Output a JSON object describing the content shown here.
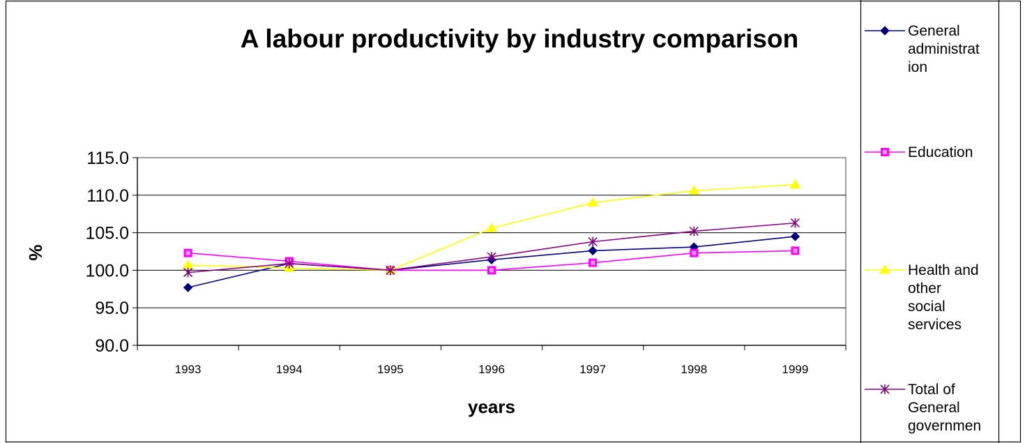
{
  "chart_data": {
    "type": "line",
    "title": "A labour productivity by industry comparison",
    "xlabel": "years",
    "ylabel": "%",
    "categories": [
      "1993",
      "1994",
      "1995",
      "1996",
      "1997",
      "1998",
      "1999"
    ],
    "ylim": [
      90,
      115
    ],
    "yticks": [
      "90.0",
      "95.0",
      "100.0",
      "105.0",
      "110.0",
      "115.0"
    ],
    "grid": true,
    "legend_position": "right",
    "series": [
      {
        "name": "General administration",
        "legend_lines": [
          "General",
          "administrat",
          "ion"
        ],
        "values": [
          97.7,
          100.9,
          100.0,
          101.4,
          102.6,
          103.1,
          104.5
        ],
        "color": "#000080",
        "marker": "diamond"
      },
      {
        "name": "Education",
        "legend_lines": [
          "Education"
        ],
        "values": [
          102.3,
          101.2,
          100.0,
          100.0,
          101.0,
          102.3,
          102.6
        ],
        "color": "#FF00FF",
        "marker": "square"
      },
      {
        "name": "Health and other social services",
        "legend_lines": [
          "Health and",
          "other",
          "social",
          "services"
        ],
        "values": [
          100.7,
          100.3,
          100.0,
          105.6,
          109.0,
          110.6,
          111.4
        ],
        "color": "#FFFF00",
        "marker": "triangle"
      },
      {
        "name": "Total of General governmen",
        "legend_lines": [
          "Total of",
          "General",
          "governmen"
        ],
        "values": [
          99.7,
          100.9,
          100.0,
          101.8,
          103.8,
          105.2,
          106.3
        ],
        "color": "#800080",
        "marker": "star"
      }
    ]
  }
}
